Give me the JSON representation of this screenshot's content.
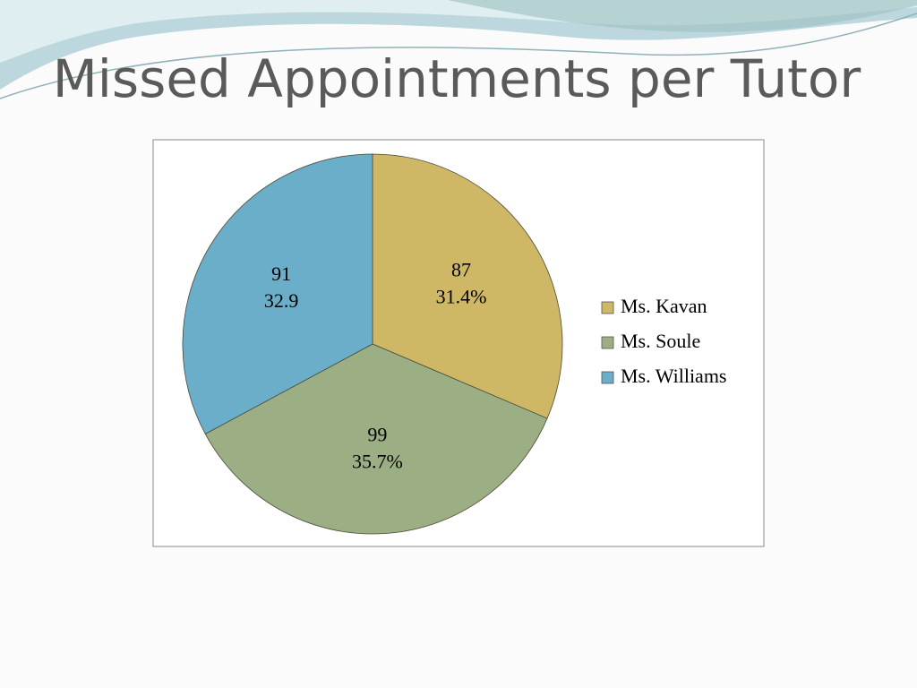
{
  "chart_data": {
    "type": "pie",
    "title": "Missed Appointments per Tutor",
    "categories": [
      "Ms. Kavan",
      "Ms. Soule",
      "Ms. Williams"
    ],
    "values": [
      87,
      99,
      91
    ],
    "percent_labels": [
      "31.4%",
      "35.7%",
      "32.9"
    ],
    "colors": [
      "#cfb865",
      "#9caf84",
      "#6aaec9"
    ],
    "legend": "right"
  }
}
